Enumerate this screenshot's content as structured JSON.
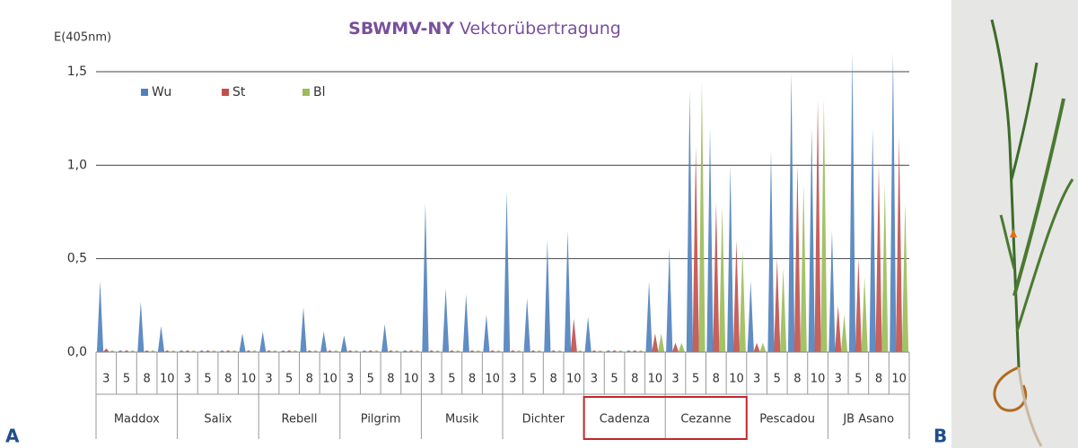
{
  "chart_data": {
    "type": "bar",
    "title": "SBWMV-NY",
    "subtitle": "Vektorübertragung",
    "y_label": "E(405nm)",
    "panel_labels": [
      "A",
      "B"
    ],
    "categories": [
      "3",
      "5",
      "8",
      "10",
      "3",
      "5",
      "8",
      "10",
      "3",
      "5",
      "8",
      "10",
      "3",
      "5",
      "8",
      "10",
      "3",
      "5",
      "8",
      "10",
      "3",
      "5",
      "8",
      "10",
      "3",
      "5",
      "8",
      "10",
      "3",
      "5",
      "8",
      "10",
      "3",
      "5",
      "8",
      "10",
      "3",
      "5",
      "8",
      "10"
    ],
    "groups": [
      "Maddox",
      "Salix",
      "Rebell",
      "Pilgrim",
      "Musik",
      "Dichter",
      "Cadenza",
      "Cezanne",
      "Pescadou",
      "JB Asano"
    ],
    "highlight_groups": [
      6,
      7
    ],
    "highlight_color": "#c0282d",
    "series": [
      {
        "name": "Wu",
        "color": "#4f81bd",
        "values": [
          0.38,
          0.01,
          0.27,
          0.14,
          0.01,
          0.01,
          0.01,
          0.1,
          0.11,
          0.01,
          0.24,
          0.11,
          0.09,
          0.01,
          0.15,
          0.01,
          0.8,
          0.34,
          0.31,
          0.2,
          0.86,
          0.29,
          0.6,
          0.65,
          0.19,
          0.01,
          0.01,
          0.38,
          0.56,
          1.4,
          1.2,
          1.0,
          0.38,
          1.08,
          1.5,
          1.2,
          0.65,
          1.6,
          1.2,
          1.6
        ]
      },
      {
        "name": "St",
        "color": "#c0504d",
        "values": [
          0.02,
          0.01,
          0.01,
          0.01,
          0.01,
          0.01,
          0.01,
          0.01,
          0.01,
          0.01,
          0.01,
          0.01,
          0.01,
          0.01,
          0.01,
          0.01,
          0.01,
          0.01,
          0.01,
          0.01,
          0.01,
          0.01,
          0.01,
          0.18,
          0.01,
          0.01,
          0.01,
          0.1,
          0.05,
          1.1,
          0.8,
          0.6,
          0.05,
          0.5,
          1.0,
          1.35,
          0.25,
          0.5,
          1.0,
          1.15
        ]
      },
      {
        "name": "Bl",
        "color": "#9bbb59",
        "values": [
          0.01,
          0.01,
          0.01,
          0.01,
          0.01,
          0.01,
          0.01,
          0.01,
          0.01,
          0.01,
          0.01,
          0.01,
          0.01,
          0.01,
          0.01,
          0.01,
          0.01,
          0.01,
          0.01,
          0.01,
          0.01,
          0.01,
          0.01,
          0.01,
          0.01,
          0.01,
          0.01,
          0.1,
          0.05,
          1.45,
          0.78,
          0.55,
          0.05,
          0.45,
          0.9,
          1.35,
          0.2,
          0.4,
          0.9,
          0.8
        ]
      }
    ],
    "ylim": [
      0,
      1.5
    ],
    "yticks": [
      {
        "value": 0,
        "label": "0,0"
      },
      {
        "value": 0.5,
        "label": "0,5"
      },
      {
        "value": 1,
        "label": "1,0"
      },
      {
        "value": 1.5,
        "label": "1,5"
      }
    ],
    "grid": true,
    "legend": "top-left"
  }
}
